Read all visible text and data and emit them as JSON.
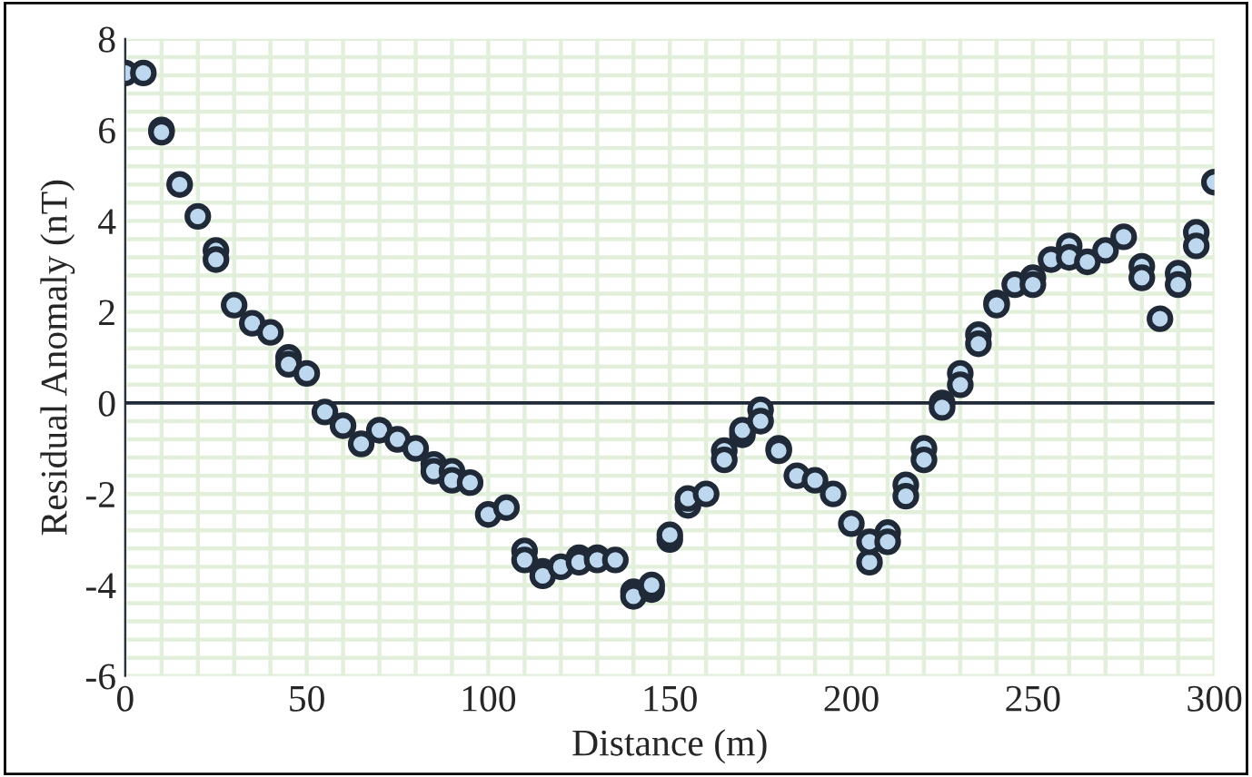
{
  "chart_data": {
    "type": "scatter",
    "xlabel": "Distance (m)",
    "ylabel": "Residual Anomaly (nT)",
    "x": [
      0,
      5,
      10,
      10,
      15,
      20,
      25,
      25,
      30,
      35,
      40,
      45,
      45,
      50,
      55,
      60,
      65,
      70,
      75,
      80,
      85,
      85,
      90,
      90,
      95,
      100,
      105,
      110,
      110,
      115,
      115,
      120,
      125,
      125,
      130,
      130,
      135,
      140,
      140,
      145,
      145,
      150,
      150,
      155,
      155,
      160,
      165,
      165,
      170,
      170,
      175,
      175,
      180,
      180,
      185,
      190,
      195,
      200,
      205,
      205,
      210,
      210,
      215,
      215,
      220,
      220,
      225,
      225,
      230,
      230,
      235,
      235,
      240,
      240,
      245,
      250,
      250,
      255,
      260,
      260,
      265,
      270,
      275,
      280,
      280,
      285,
      290,
      290,
      295,
      295,
      300
    ],
    "series": [
      {
        "color": "#bdd7ee",
        "values": [
          7.25,
          7.25,
          6.0,
          5.95,
          4.8,
          4.1,
          3.35,
          3.15,
          2.15,
          1.75,
          1.55,
          1.0,
          0.85,
          0.65,
          -0.2,
          -0.5,
          -0.9,
          -0.6,
          -0.8,
          -1.0,
          -1.35,
          -1.5,
          -1.5,
          -1.7,
          -1.75,
          -2.45,
          -2.3,
          -3.25,
          -3.45,
          -3.7,
          -3.8,
          -3.6,
          -3.4,
          -3.5,
          -3.4,
          -3.45,
          -3.45,
          -4.15,
          -4.25,
          -4.1,
          -4.0,
          -3.0,
          -2.9,
          -2.25,
          -2.1,
          -2.0,
          -1.05,
          -1.25,
          -0.7,
          -0.6,
          -0.15,
          -0.4,
          -1.0,
          -1.05,
          -1.6,
          -1.7,
          -2.0,
          -2.65,
          -3.5,
          -3.05,
          -2.85,
          -3.05,
          -1.8,
          -2.05,
          -1.0,
          -1.25,
          0.0,
          -0.1,
          0.65,
          0.4,
          1.5,
          1.3,
          2.2,
          2.15,
          2.6,
          2.75,
          2.6,
          3.15,
          3.45,
          3.2,
          3.1,
          3.35,
          3.65,
          3.0,
          2.75,
          1.85,
          2.85,
          2.6,
          3.75,
          3.45,
          4.85
        ]
      }
    ],
    "xlim": [
      0,
      300
    ],
    "xticks": [
      0,
      50,
      100,
      150,
      200,
      250,
      300
    ],
    "ylim": [
      -6,
      8
    ],
    "yticks": [
      -6,
      -4,
      -2,
      0,
      2,
      4,
      6,
      8
    ],
    "ref_lines": [
      {
        "axis": "y",
        "value": 0,
        "color": "#1f2937"
      }
    ],
    "grid": true,
    "marker": "circle",
    "legend": false
  }
}
